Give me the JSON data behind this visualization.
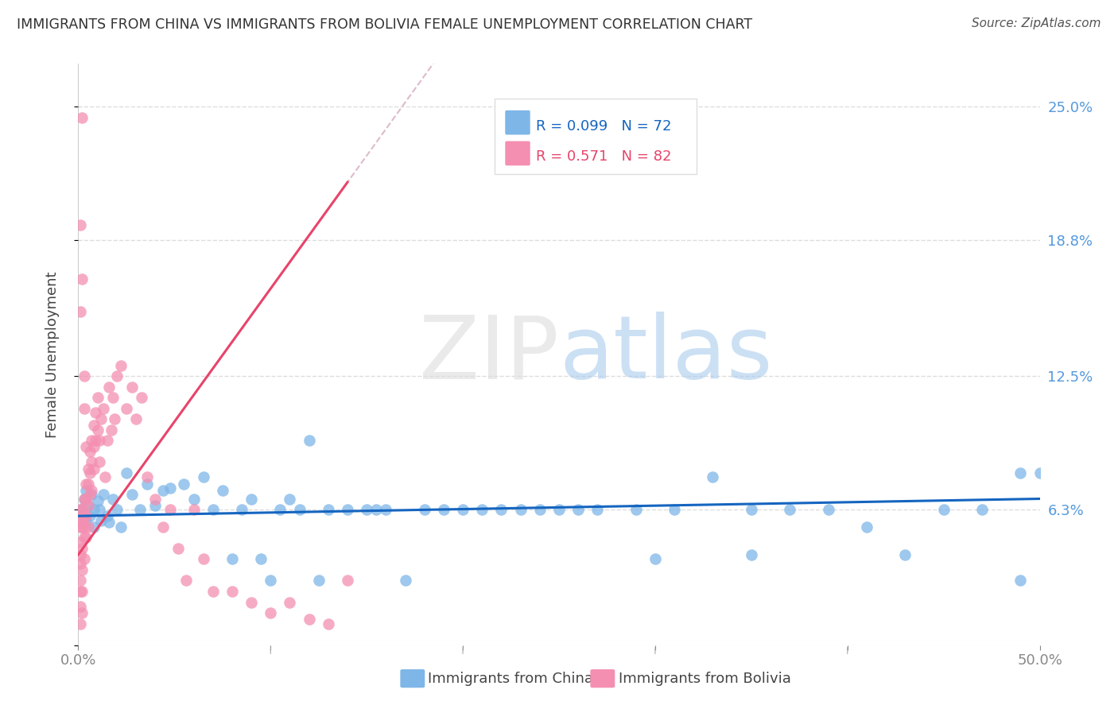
{
  "title": "IMMIGRANTS FROM CHINA VS IMMIGRANTS FROM BOLIVIA FEMALE UNEMPLOYMENT CORRELATION CHART",
  "source": "Source: ZipAtlas.com",
  "ylabel": "Female Unemployment",
  "xlim": [
    0.0,
    0.5
  ],
  "ylim": [
    0.0,
    0.27
  ],
  "yticks": [
    0.0,
    0.063,
    0.125,
    0.188,
    0.25
  ],
  "ytick_labels": [
    "",
    "6.3%",
    "12.5%",
    "18.8%",
    "25.0%"
  ],
  "legend_china": "Immigrants from China",
  "legend_bolivia": "Immigrants from Bolivia",
  "R_china": "0.099",
  "N_china": "72",
  "R_bolivia": "0.571",
  "N_bolivia": "82",
  "color_china": "#7EB6E8",
  "color_bolivia": "#F48FB1",
  "trendline_china_color": "#1565C0",
  "trendline_bolivia_color": "#E8446A",
  "trendline_dashed_color": "#DDBBCC",
  "grid_color": "#DDDDDD",
  "watermark_zip_color": "#DDDDDD",
  "watermark_atlas_color": "#AACCEE",
  "legend_box_color": "#DDDDDD",
  "china_x": [
    0.001,
    0.002,
    0.003,
    0.004,
    0.004,
    0.005,
    0.006,
    0.007,
    0.008,
    0.008,
    0.01,
    0.011,
    0.012,
    0.013,
    0.015,
    0.016,
    0.018,
    0.02,
    0.022,
    0.025,
    0.028,
    0.032,
    0.036,
    0.04,
    0.044,
    0.048,
    0.055,
    0.06,
    0.065,
    0.07,
    0.075,
    0.08,
    0.085,
    0.09,
    0.095,
    0.1,
    0.105,
    0.11,
    0.115,
    0.12,
    0.125,
    0.13,
    0.14,
    0.15,
    0.155,
    0.16,
    0.17,
    0.18,
    0.19,
    0.2,
    0.21,
    0.22,
    0.23,
    0.24,
    0.25,
    0.26,
    0.27,
    0.29,
    0.31,
    0.33,
    0.35,
    0.37,
    0.39,
    0.41,
    0.43,
    0.45,
    0.47,
    0.49,
    0.5,
    0.35,
    0.3,
    0.49
  ],
  "china_y": [
    0.063,
    0.063,
    0.068,
    0.072,
    0.058,
    0.065,
    0.06,
    0.07,
    0.063,
    0.055,
    0.067,
    0.063,
    0.058,
    0.07,
    0.06,
    0.057,
    0.068,
    0.063,
    0.055,
    0.08,
    0.07,
    0.063,
    0.075,
    0.065,
    0.072,
    0.073,
    0.075,
    0.068,
    0.078,
    0.063,
    0.072,
    0.04,
    0.063,
    0.068,
    0.04,
    0.03,
    0.063,
    0.068,
    0.063,
    0.095,
    0.03,
    0.063,
    0.063,
    0.063,
    0.063,
    0.063,
    0.03,
    0.063,
    0.063,
    0.063,
    0.063,
    0.063,
    0.063,
    0.063,
    0.063,
    0.063,
    0.063,
    0.063,
    0.063,
    0.078,
    0.063,
    0.063,
    0.063,
    0.055,
    0.042,
    0.063,
    0.063,
    0.03,
    0.08,
    0.042,
    0.04,
    0.08
  ],
  "bolivia_x": [
    0.001,
    0.001,
    0.001,
    0.001,
    0.001,
    0.001,
    0.001,
    0.001,
    0.001,
    0.001,
    0.002,
    0.002,
    0.002,
    0.002,
    0.002,
    0.002,
    0.002,
    0.003,
    0.003,
    0.003,
    0.003,
    0.003,
    0.004,
    0.004,
    0.004,
    0.004,
    0.005,
    0.005,
    0.005,
    0.005,
    0.006,
    0.006,
    0.006,
    0.007,
    0.007,
    0.007,
    0.008,
    0.008,
    0.008,
    0.009,
    0.009,
    0.01,
    0.01,
    0.011,
    0.011,
    0.012,
    0.013,
    0.014,
    0.015,
    0.016,
    0.017,
    0.018,
    0.019,
    0.02,
    0.022,
    0.025,
    0.028,
    0.03,
    0.033,
    0.036,
    0.04,
    0.044,
    0.048,
    0.052,
    0.056,
    0.06,
    0.065,
    0.07,
    0.08,
    0.09,
    0.1,
    0.11,
    0.12,
    0.13,
    0.14,
    0.001,
    0.001,
    0.002,
    0.002,
    0.003,
    0.003,
    0.004
  ],
  "bolivia_y": [
    0.063,
    0.058,
    0.055,
    0.048,
    0.042,
    0.038,
    0.03,
    0.025,
    0.018,
    0.01,
    0.063,
    0.058,
    0.055,
    0.045,
    0.035,
    0.025,
    0.015,
    0.068,
    0.06,
    0.055,
    0.05,
    0.04,
    0.075,
    0.068,
    0.06,
    0.05,
    0.082,
    0.075,
    0.065,
    0.055,
    0.09,
    0.08,
    0.07,
    0.095,
    0.085,
    0.072,
    0.102,
    0.092,
    0.082,
    0.108,
    0.095,
    0.115,
    0.1,
    0.095,
    0.085,
    0.105,
    0.11,
    0.078,
    0.095,
    0.12,
    0.1,
    0.115,
    0.105,
    0.125,
    0.13,
    0.11,
    0.12,
    0.105,
    0.115,
    0.078,
    0.068,
    0.055,
    0.063,
    0.045,
    0.03,
    0.063,
    0.04,
    0.025,
    0.025,
    0.02,
    0.015,
    0.02,
    0.012,
    0.01,
    0.03,
    0.155,
    0.195,
    0.245,
    0.17,
    0.125,
    0.11,
    0.092
  ]
}
